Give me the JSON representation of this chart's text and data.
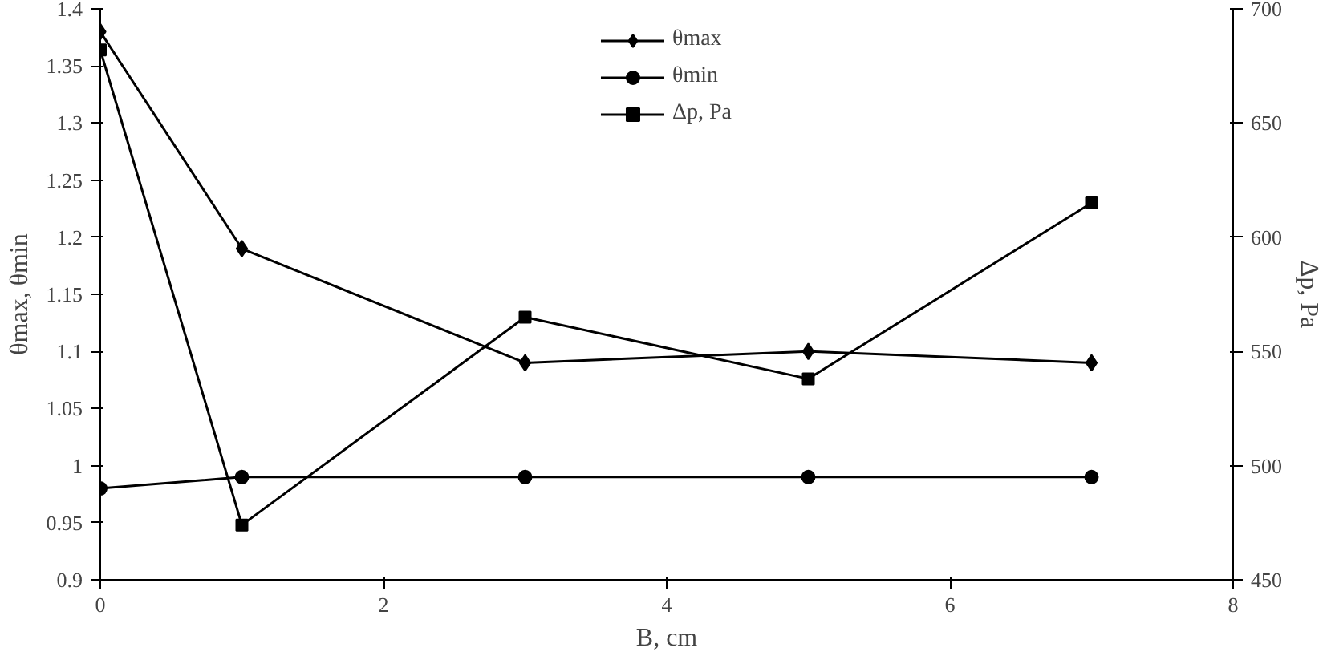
{
  "chart_data": {
    "type": "line",
    "xlabel": "B, cm",
    "ylabel": "θmax, θmin",
    "y2label": "Δp, Pa",
    "x": [
      0,
      1,
      3,
      5,
      7
    ],
    "series": [
      {
        "name": "θmax",
        "color": "#000000",
        "marker": "diamond",
        "values": [
          1.38,
          1.19,
          1.09,
          1.1,
          1.09
        ]
      },
      {
        "name": "θmin",
        "color": "#000000",
        "marker": "circle",
        "values": [
          0.98,
          0.99,
          0.99,
          0.99,
          0.99
        ]
      },
      {
        "name": "Δp, Pa",
        "color": "#000000",
        "marker": "square",
        "axis": "y2",
        "values": [
          682,
          474,
          565,
          538,
          615
        ]
      }
    ],
    "xlim": [
      0,
      8
    ],
    "xticks": [
      0,
      2,
      4,
      6,
      8
    ],
    "ylim": [
      0.9,
      1.4
    ],
    "yticks": [
      0.9,
      0.95,
      1,
      1.05,
      1.1,
      1.15,
      1.2,
      1.25,
      1.3,
      1.35,
      1.4
    ],
    "y2lim": [
      450,
      700
    ],
    "y2ticks": [
      450,
      500,
      550,
      600,
      650,
      700
    ],
    "grid": false,
    "legend": "top",
    "line_style": "solid"
  }
}
